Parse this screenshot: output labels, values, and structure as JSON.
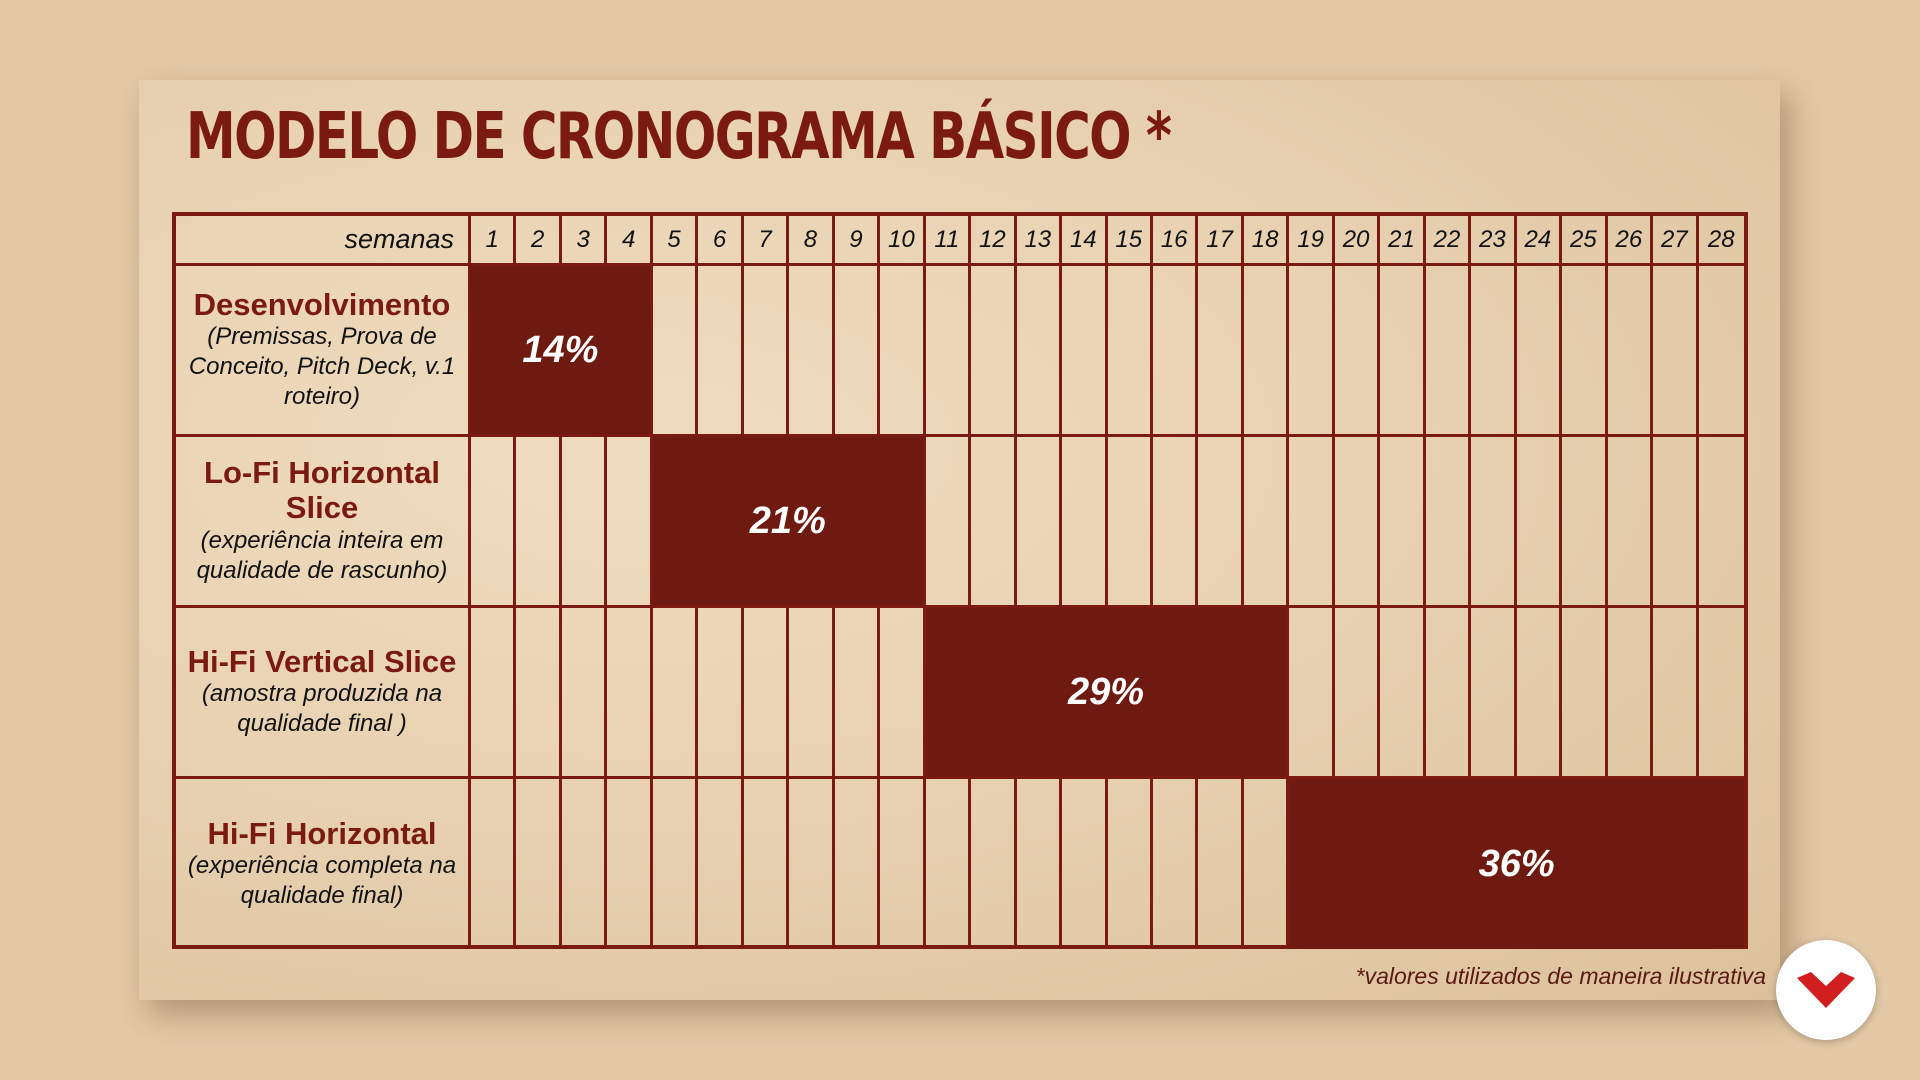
{
  "title": "MODELO DE CRONOGRAMA BÁSICO *",
  "header_label": "semanas",
  "weeks": [
    "1",
    "2",
    "3",
    "4",
    "5",
    "6",
    "7",
    "8",
    "9",
    "10",
    "11",
    "12",
    "13",
    "14",
    "15",
    "16",
    "17",
    "18",
    "19",
    "20",
    "21",
    "22",
    "23",
    "24",
    "25",
    "26",
    "27",
    "28"
  ],
  "phases": [
    {
      "name": "Desenvolvimento",
      "description": "(Premissas, Prova de Conceito, Pitch Deck, v.1 roteiro)",
      "start_week": 1,
      "end_week": 4,
      "percent": "14%"
    },
    {
      "name": "Lo-Fi Horizontal Slice",
      "description": "(experiência inteira em qualidade de rascunho)",
      "start_week": 5,
      "end_week": 10,
      "percent": "21%"
    },
    {
      "name": "Hi-Fi Vertical Slice",
      "description": "(amostra produzida na qualidade final )",
      "start_week": 11,
      "end_week": 18,
      "percent": "29%"
    },
    {
      "name": "Hi-Fi Horizontal",
      "description": "(experiência completa na qualidade final)",
      "start_week": 19,
      "end_week": 28,
      "percent": "36%"
    }
  ],
  "footnote": "*valores utilizados de maneira ilustrativa",
  "colors": {
    "accent": "#6f1a10",
    "paper": "#e8d2b2",
    "background": "#e3c9a6",
    "logo": "#d11f1f"
  },
  "logo_icon": "red-chevron-logo"
}
